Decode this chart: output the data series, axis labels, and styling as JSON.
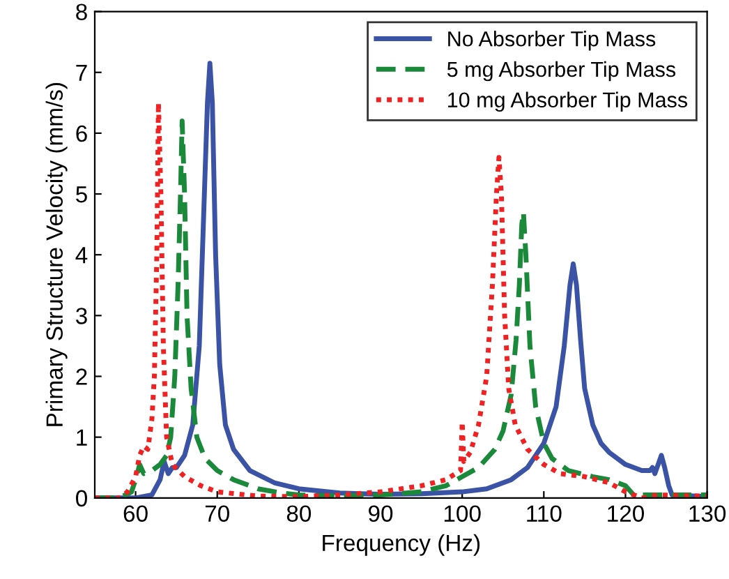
{
  "chart_data": {
    "type": "line",
    "xlabel": "Frequency (Hz)",
    "ylabel": "Primary Structure Velocity (mm/s)",
    "xlim": [
      55,
      130
    ],
    "xticks": [
      60,
      70,
      80,
      90,
      100,
      110,
      120,
      130
    ],
    "ylim": [
      0,
      8
    ],
    "yticks": [
      0,
      1,
      2,
      3,
      4,
      5,
      6,
      7,
      8
    ],
    "grid": false,
    "legend": "top right",
    "series": [
      {
        "name": "No Absorber Tip Mass",
        "color": "#3a53a4",
        "line_style": "solid",
        "x": [
          55,
          60,
          62,
          63,
          63.5,
          64,
          64.5,
          65,
          66,
          67,
          67.8,
          68.3,
          68.8,
          69.1,
          69.4,
          69.8,
          70.3,
          71,
          72,
          74,
          77,
          80,
          85,
          90,
          95,
          100,
          103,
          106,
          108,
          110,
          111.5,
          112.5,
          113.2,
          113.6,
          114,
          114.5,
          115,
          116,
          117,
          118,
          120,
          122,
          123,
          123.3,
          123.6,
          124,
          124.4,
          124.8,
          125.3,
          125.7,
          130
        ],
        "values": [
          0,
          0,
          0.05,
          0.3,
          0.6,
          0.4,
          0.5,
          0.5,
          0.7,
          1.2,
          2.5,
          4.5,
          6.5,
          7.15,
          6.5,
          4.0,
          2.2,
          1.2,
          0.8,
          0.45,
          0.25,
          0.15,
          0.08,
          0.06,
          0.07,
          0.1,
          0.15,
          0.3,
          0.5,
          0.9,
          1.5,
          2.5,
          3.5,
          3.85,
          3.5,
          2.6,
          1.8,
          1.2,
          0.9,
          0.75,
          0.55,
          0.45,
          0.45,
          0.5,
          0.4,
          0.55,
          0.7,
          0.5,
          0.2,
          0.05,
          0.02
        ]
      },
      {
        "name": "5 mg Absorber Tip Mass",
        "color": "#1a8a3a",
        "line_style": "dashed",
        "x": [
          55,
          58,
          59.5,
          60,
          60.5,
          61,
          62,
          63,
          63.8,
          64.3,
          64.8,
          65.2,
          65.5,
          65.7,
          66,
          66.3,
          66.8,
          67.5,
          68.5,
          70,
          72,
          75,
          78,
          80,
          85,
          90,
          95,
          98,
          100,
          102,
          104,
          105,
          106,
          106.6,
          107,
          107.3,
          107.5,
          107.8,
          108.3,
          109,
          110,
          111,
          113,
          116,
          118,
          120,
          121,
          130
        ],
        "values": [
          0,
          0,
          0.1,
          0.3,
          0.55,
          0.4,
          0.45,
          0.55,
          0.7,
          1.0,
          2.0,
          3.5,
          5.0,
          6.2,
          5.0,
          3.0,
          1.8,
          1.0,
          0.65,
          0.45,
          0.3,
          0.15,
          0.08,
          0.05,
          0.03,
          0.05,
          0.1,
          0.2,
          0.35,
          0.5,
          0.8,
          1.1,
          1.7,
          2.6,
          3.5,
          4.5,
          4.7,
          4.0,
          2.5,
          1.5,
          0.9,
          0.65,
          0.45,
          0.35,
          0.3,
          0.2,
          0.05,
          0.05
        ]
      },
      {
        "name": "10 mg Absorber Tip Mass",
        "color": "#ee2222",
        "line_style": "dotted",
        "x": [
          55,
          58,
          59,
          60,
          60.5,
          61,
          61.5,
          62,
          62.3,
          62.6,
          62.8,
          63.1,
          63.4,
          63.8,
          64.5,
          66,
          68,
          70,
          75,
          80,
          85,
          90,
          95,
          98,
          99.8,
          100,
          100.2,
          101,
          102,
          103,
          103.7,
          104.2,
          104.5,
          104.8,
          105.2,
          105.7,
          106.5,
          108,
          110,
          112,
          115,
          118,
          120,
          122,
          124,
          130
        ],
        "values": [
          0,
          0,
          0.1,
          0.35,
          0.7,
          0.85,
          0.8,
          1.3,
          2.0,
          4.0,
          6.5,
          5.0,
          2.5,
          1.0,
          0.55,
          0.35,
          0.2,
          0.1,
          0.03,
          0.02,
          0.05,
          0.1,
          0.2,
          0.3,
          0.45,
          1.25,
          0.6,
          0.75,
          1.2,
          2.0,
          3.5,
          5.0,
          5.6,
          5.0,
          3.0,
          1.8,
          1.2,
          0.8,
          0.55,
          0.4,
          0.35,
          0.25,
          0.1,
          0,
          0.05,
          0.03
        ]
      }
    ]
  }
}
